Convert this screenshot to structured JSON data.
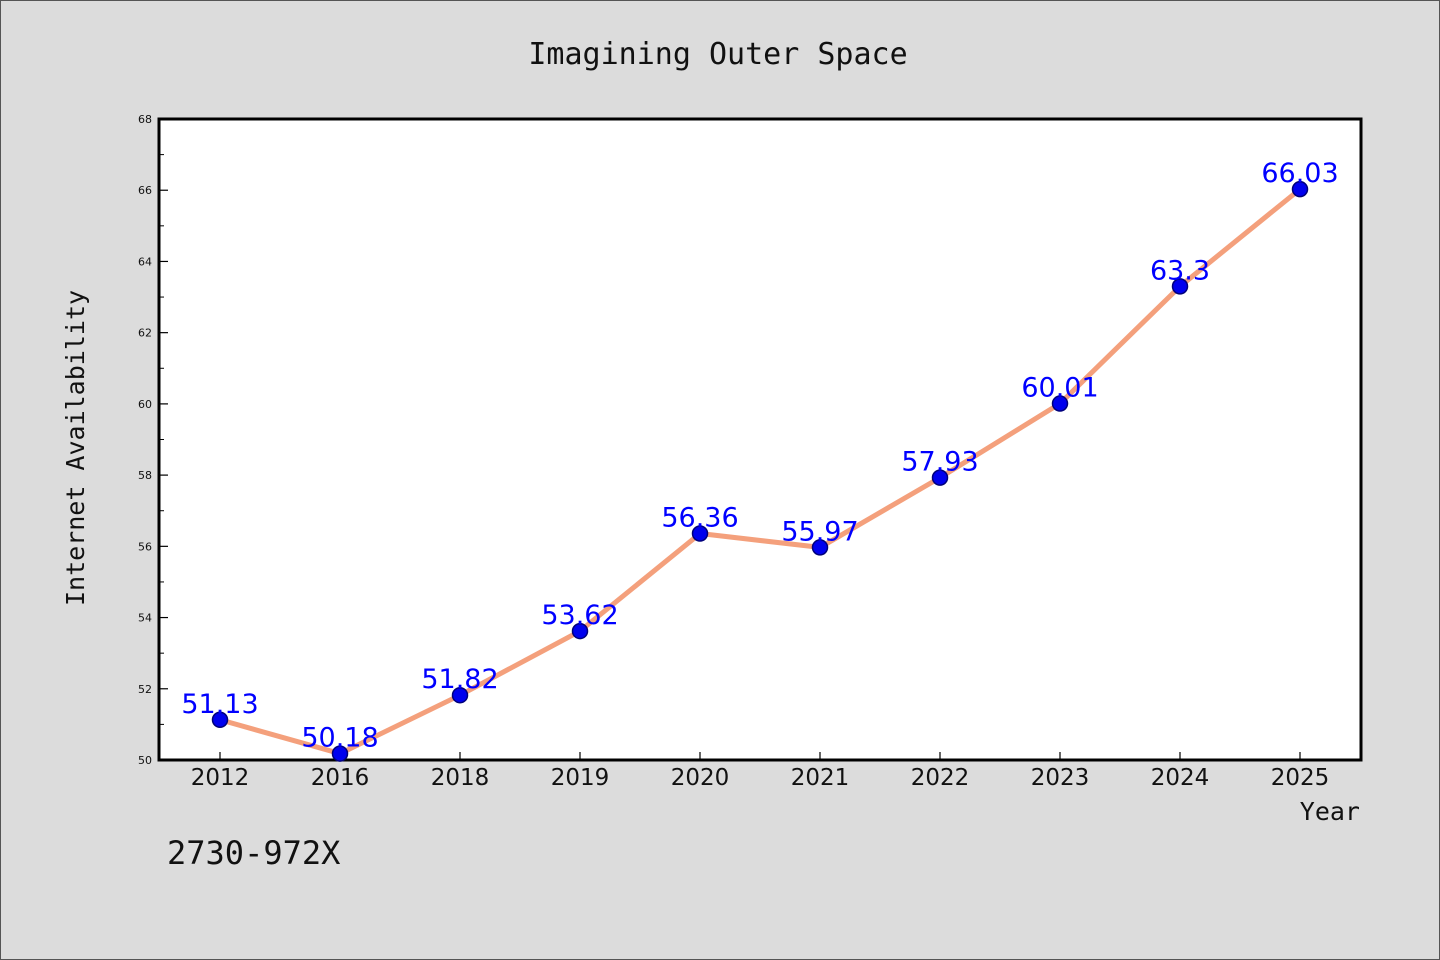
{
  "chart_data": {
    "type": "line",
    "title": "Imagining Outer Space",
    "xlabel": "Year",
    "ylabel": "Internet Availability",
    "categories": [
      "2012",
      "2016",
      "2018",
      "2019",
      "2020",
      "2021",
      "2022",
      "2023",
      "2024",
      "2025"
    ],
    "series": [
      {
        "values": [
          51.13,
          50.18,
          51.82,
          53.62,
          56.36,
          55.97,
          57.93,
          60.01,
          63.3,
          66.03
        ],
        "labels": [
          "51.13",
          "50.18",
          "51.82",
          "53.62",
          "56.36",
          "55.97",
          "57.93",
          "60.01",
          "63.3",
          "66.03"
        ],
        "line_color": "#f4a07c",
        "marker_color": "#0000ee",
        "label_color": "#0000ff"
      }
    ],
    "ylim": [
      50,
      68
    ],
    "yticks": [
      "50",
      "52",
      "54",
      "56",
      "58",
      "60",
      "62",
      "64",
      "66",
      "68"
    ],
    "grid": false
  },
  "footnote": "2730-972X",
  "colors": {
    "background": "#dcdcdc",
    "plot_background": "#ffffff",
    "axis": "#000000"
  }
}
